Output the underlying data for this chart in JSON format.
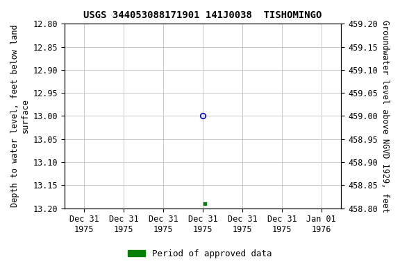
{
  "title": "USGS 344053088171901 141J0038  TISHOMINGO",
  "ylabel_left": "Depth to water level, feet below land\nsurface",
  "ylabel_right": "Groundwater level above NGVD 1929, feet",
  "ylim_left_top": 12.8,
  "ylim_left_bottom": 13.2,
  "ylim_right_top": 459.2,
  "ylim_right_bottom": 458.8,
  "yticks_left": [
    12.8,
    12.85,
    12.9,
    12.95,
    13.0,
    13.05,
    13.1,
    13.15,
    13.2
  ],
  "yticks_right": [
    459.2,
    459.15,
    459.1,
    459.05,
    459.0,
    458.95,
    458.9,
    458.85,
    458.8
  ],
  "point_blue_x": 3.0,
  "point_blue_y": 13.0,
  "point_green_x": 3.05,
  "point_green_y": 13.19,
  "xtick_positions": [
    0,
    1,
    2,
    3,
    4,
    5,
    6
  ],
  "xtick_labels": [
    "Dec 31\n1975",
    "Dec 31\n1975",
    "Dec 31\n1975",
    "Dec 31\n1975",
    "Dec 31\n1975",
    "Dec 31\n1975",
    "Jan 01\n1976"
  ],
  "background_color": "#ffffff",
  "grid_color": "#c8c8c8",
  "legend_label": "Period of approved data",
  "legend_color": "#008000",
  "blue_marker_color": "#0000cd",
  "green_marker_color": "#008000",
  "title_fontsize": 10,
  "axis_label_fontsize": 8.5,
  "tick_fontsize": 8.5,
  "legend_fontsize": 9
}
